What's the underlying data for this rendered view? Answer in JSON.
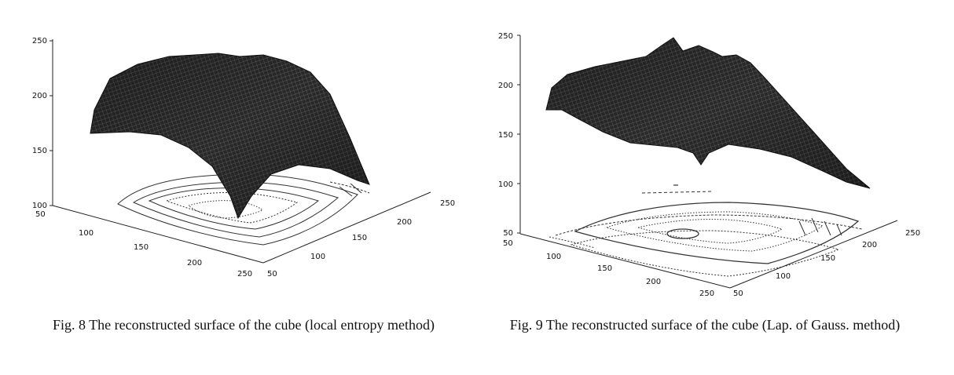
{
  "figures": [
    {
      "id": "fig8",
      "caption": "Fig. 8 The reconstructed surface of the cube (local entropy method)",
      "chart_data": {
        "type": "surface",
        "z_ticks": [
          "250",
          "200",
          "150",
          "100"
        ],
        "x_ticks": [
          "50",
          "100",
          "150",
          "200",
          "250"
        ],
        "y_ticks": [
          "50",
          "100",
          "150",
          "200",
          "250"
        ],
        "zlim": [
          100,
          250
        ],
        "xlim": [
          50,
          250
        ],
        "ylim": [
          50,
          250
        ],
        "projected_contours": true
      }
    },
    {
      "id": "fig9",
      "caption": "Fig. 9 The reconstructed surface of the cube (Lap. of Gauss. method)",
      "chart_data": {
        "type": "surface",
        "z_ticks": [
          "250",
          "200",
          "150",
          "100",
          "50"
        ],
        "x_ticks": [
          "50",
          "100",
          "150",
          "200",
          "250"
        ],
        "y_ticks": [
          "50",
          "100",
          "150",
          "200",
          "250"
        ],
        "zlim": [
          50,
          250
        ],
        "xlim": [
          50,
          250
        ],
        "ylim": [
          50,
          250
        ],
        "projected_contours": true
      }
    }
  ]
}
